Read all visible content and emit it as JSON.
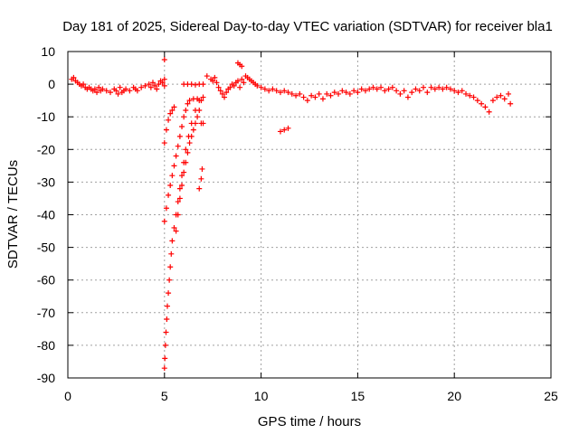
{
  "chart_data": {
    "type": "scatter",
    "title": "Day 181 of 2025, Sidereal Day-to-day VTEC variation (SDTVAR) for receiver bla1",
    "xlabel": "GPS time / hours",
    "ylabel": "SDTVAR / TECUs",
    "xlim": [
      0,
      25
    ],
    "ylim": [
      -90,
      10
    ],
    "xticks": [
      0,
      5,
      10,
      15,
      20,
      25
    ],
    "yticks": [
      10,
      0,
      -10,
      -20,
      -30,
      -40,
      -50,
      -60,
      -70,
      -80,
      -90
    ],
    "grid": true,
    "marker": "+",
    "color": "#ff0000",
    "series": [
      {
        "name": "band-near-zero-a",
        "points": [
          [
            0.2,
            1.5
          ],
          [
            0.3,
            2.0
          ],
          [
            0.4,
            1.0
          ],
          [
            0.5,
            0.5
          ],
          [
            0.6,
            0.0
          ],
          [
            0.7,
            -0.5
          ],
          [
            0.8,
            0.0
          ],
          [
            0.9,
            -1.0
          ],
          [
            1.0,
            -1.5
          ],
          [
            1.1,
            -1.0
          ],
          [
            1.2,
            -1.5
          ],
          [
            1.3,
            -2.0
          ],
          [
            1.4,
            -1.5
          ],
          [
            1.5,
            -2.5
          ],
          [
            1.6,
            -1.0
          ],
          [
            1.7,
            -2.0
          ],
          [
            1.8,
            -1.5
          ],
          [
            2.0,
            -2.0
          ],
          [
            2.2,
            -2.5
          ],
          [
            2.4,
            -1.5
          ],
          [
            2.5,
            -2.0
          ],
          [
            2.6,
            -3.0
          ],
          [
            2.7,
            -1.0
          ],
          [
            2.8,
            -2.5
          ],
          [
            2.9,
            -2.0
          ],
          [
            3.0,
            -1.5
          ],
          [
            3.2,
            -2.0
          ],
          [
            3.4,
            -1.0
          ],
          [
            3.5,
            -1.5
          ],
          [
            3.6,
            -2.0
          ],
          [
            3.8,
            -1.0
          ],
          [
            4.0,
            -0.5
          ],
          [
            4.2,
            0.0
          ],
          [
            4.3,
            -1.0
          ],
          [
            4.4,
            0.5
          ],
          [
            4.5,
            -0.5
          ],
          [
            4.6,
            -1.5
          ],
          [
            4.7,
            0.0
          ],
          [
            4.8,
            1.0
          ],
          [
            4.9,
            0.5
          ],
          [
            5.0,
            -0.5
          ],
          [
            5.0,
            1.5
          ]
        ]
      },
      {
        "name": "outlier-near-5h",
        "points": [
          [
            5.0,
            7.5
          ]
        ]
      },
      {
        "name": "steep-track-low",
        "points": [
          [
            5.0,
            -87
          ],
          [
            5.02,
            -84
          ],
          [
            5.05,
            -80
          ],
          [
            5.08,
            -76
          ],
          [
            5.12,
            -72
          ],
          [
            5.15,
            -68
          ],
          [
            5.2,
            -64
          ],
          [
            5.25,
            -60
          ],
          [
            5.3,
            -56
          ],
          [
            5.35,
            -52
          ],
          [
            5.4,
            -48
          ],
          [
            5.5,
            -44
          ],
          [
            5.6,
            -40
          ],
          [
            5.7,
            -36
          ],
          [
            5.8,
            -32
          ],
          [
            5.9,
            -28
          ],
          [
            6.0,
            -24
          ],
          [
            6.1,
            -20
          ],
          [
            6.25,
            -16
          ],
          [
            6.4,
            -12
          ],
          [
            6.6,
            -8
          ],
          [
            6.8,
            -5
          ],
          [
            7.0,
            -4
          ]
        ]
      },
      {
        "name": "steep-track-mid",
        "points": [
          [
            5.0,
            -42
          ],
          [
            5.1,
            -38
          ],
          [
            5.2,
            -34
          ],
          [
            5.3,
            -31
          ],
          [
            5.4,
            -28
          ],
          [
            5.5,
            -25
          ],
          [
            5.6,
            -22
          ],
          [
            5.7,
            -19
          ],
          [
            5.8,
            -16
          ],
          [
            5.9,
            -13
          ],
          [
            6.0,
            -10
          ],
          [
            6.1,
            -8
          ],
          [
            6.2,
            -6
          ],
          [
            6.3,
            -5
          ],
          [
            6.5,
            -4.5
          ],
          [
            6.7,
            -4.5
          ],
          [
            6.9,
            -5
          ]
        ]
      },
      {
        "name": "steep-track-high",
        "points": [
          [
            5.0,
            -18
          ],
          [
            5.1,
            -14
          ],
          [
            5.2,
            -11
          ],
          [
            5.3,
            -9
          ],
          [
            5.4,
            -8
          ],
          [
            5.5,
            -7
          ]
        ]
      },
      {
        "name": "steep-track-right",
        "points": [
          [
            5.6,
            -45
          ],
          [
            5.7,
            -40
          ],
          [
            5.8,
            -35
          ],
          [
            5.9,
            -31
          ],
          [
            6.0,
            -27
          ],
          [
            6.1,
            -24
          ],
          [
            6.2,
            -21
          ],
          [
            6.3,
            -18
          ],
          [
            6.4,
            -16
          ],
          [
            6.5,
            -14
          ],
          [
            6.6,
            -12
          ],
          [
            6.7,
            -10
          ],
          [
            6.8,
            -8
          ],
          [
            6.9,
            -12
          ],
          [
            7.0,
            -12
          ],
          [
            6.95,
            -26
          ],
          [
            6.9,
            -29
          ],
          [
            6.8,
            -32
          ]
        ]
      },
      {
        "name": "short-segment-0h",
        "points": [
          [
            6.0,
            0.0
          ],
          [
            6.2,
            0.0
          ],
          [
            6.4,
            0.0
          ],
          [
            6.6,
            -0.2
          ],
          [
            6.8,
            0.0
          ],
          [
            7.0,
            0.0
          ]
        ]
      },
      {
        "name": "band-near-zero-b",
        "points": [
          [
            7.2,
            2.5
          ],
          [
            7.4,
            1.5
          ],
          [
            7.5,
            1.0
          ],
          [
            7.6,
            2.0
          ],
          [
            7.7,
            0.5
          ],
          [
            7.8,
            -1.0
          ],
          [
            7.9,
            -2.0
          ],
          [
            8.0,
            -3.0
          ],
          [
            8.1,
            -4.0
          ],
          [
            8.2,
            -2.5
          ],
          [
            8.3,
            -1.5
          ],
          [
            8.4,
            -1.0
          ],
          [
            8.5,
            0.0
          ],
          [
            8.6,
            -0.5
          ],
          [
            8.7,
            0.5
          ],
          [
            8.8,
            1.0
          ],
          [
            8.9,
            -1.0
          ],
          [
            9.0,
            1.5
          ],
          [
            9.1,
            0.5
          ],
          [
            9.2,
            2.5
          ],
          [
            9.3,
            2.0
          ],
          [
            9.4,
            1.5
          ],
          [
            9.5,
            1.0
          ],
          [
            9.6,
            0.5
          ],
          [
            9.7,
            0.0
          ],
          [
            9.8,
            -0.5
          ],
          [
            10.0,
            -1.0
          ],
          [
            10.2,
            -1.5
          ],
          [
            10.4,
            -2.0
          ],
          [
            10.6,
            -1.5
          ],
          [
            10.8,
            -2.0
          ],
          [
            11.0,
            -2.5
          ],
          [
            11.2,
            -2.0
          ],
          [
            11.4,
            -2.5
          ],
          [
            11.6,
            -3.0
          ],
          [
            11.8,
            -3.5
          ],
          [
            12.0,
            -3.0
          ],
          [
            12.2,
            -4.0
          ],
          [
            12.4,
            -5.0
          ],
          [
            12.6,
            -3.5
          ],
          [
            12.8,
            -4.0
          ],
          [
            13.0,
            -3.0
          ],
          [
            13.2,
            -4.5
          ],
          [
            13.4,
            -3.0
          ],
          [
            13.6,
            -3.5
          ],
          [
            13.8,
            -2.5
          ],
          [
            14.0,
            -3.0
          ],
          [
            14.2,
            -2.0
          ],
          [
            14.4,
            -2.5
          ],
          [
            14.6,
            -3.0
          ],
          [
            14.8,
            -2.0
          ],
          [
            15.0,
            -2.5
          ],
          [
            15.2,
            -1.5
          ],
          [
            15.4,
            -2.0
          ],
          [
            15.6,
            -1.5
          ],
          [
            15.8,
            -1.0
          ],
          [
            16.0,
            -1.5
          ],
          [
            16.2,
            -1.0
          ],
          [
            16.4,
            -2.0
          ],
          [
            16.6,
            -1.5
          ],
          [
            16.8,
            -1.0
          ],
          [
            17.0,
            -2.0
          ],
          [
            17.2,
            -3.0
          ],
          [
            17.4,
            -2.0
          ],
          [
            17.6,
            -4.0
          ],
          [
            17.8,
            -2.5
          ],
          [
            18.0,
            -1.5
          ],
          [
            18.2,
            -2.0
          ],
          [
            18.4,
            -1.0
          ],
          [
            18.6,
            -2.5
          ],
          [
            18.8,
            -1.0
          ],
          [
            19.0,
            -1.5
          ],
          [
            19.2,
            -1.0
          ],
          [
            19.4,
            -1.5
          ],
          [
            19.6,
            -1.0
          ],
          [
            19.8,
            -1.5
          ],
          [
            20.0,
            -2.0
          ],
          [
            20.2,
            -2.5
          ],
          [
            20.4,
            -2.0
          ],
          [
            20.6,
            -3.0
          ],
          [
            20.8,
            -3.5
          ],
          [
            21.0,
            -4.0
          ],
          [
            21.2,
            -5.0
          ],
          [
            21.4,
            -6.0
          ],
          [
            21.6,
            -7.0
          ],
          [
            21.8,
            -8.5
          ],
          [
            22.0,
            -5.0
          ],
          [
            22.2,
            -4.0
          ],
          [
            22.4,
            -3.5
          ],
          [
            22.6,
            -4.5
          ],
          [
            22.8,
            -3.0
          ],
          [
            22.9,
            -6.0
          ]
        ]
      },
      {
        "name": "outlier-near-9h",
        "points": [
          [
            8.8,
            6.5
          ],
          [
            8.9,
            6.0
          ],
          [
            9.0,
            5.5
          ]
        ]
      },
      {
        "name": "segment-near-11h",
        "points": [
          [
            11.0,
            -14.5
          ],
          [
            11.2,
            -14.0
          ],
          [
            11.4,
            -13.5
          ]
        ]
      }
    ]
  }
}
